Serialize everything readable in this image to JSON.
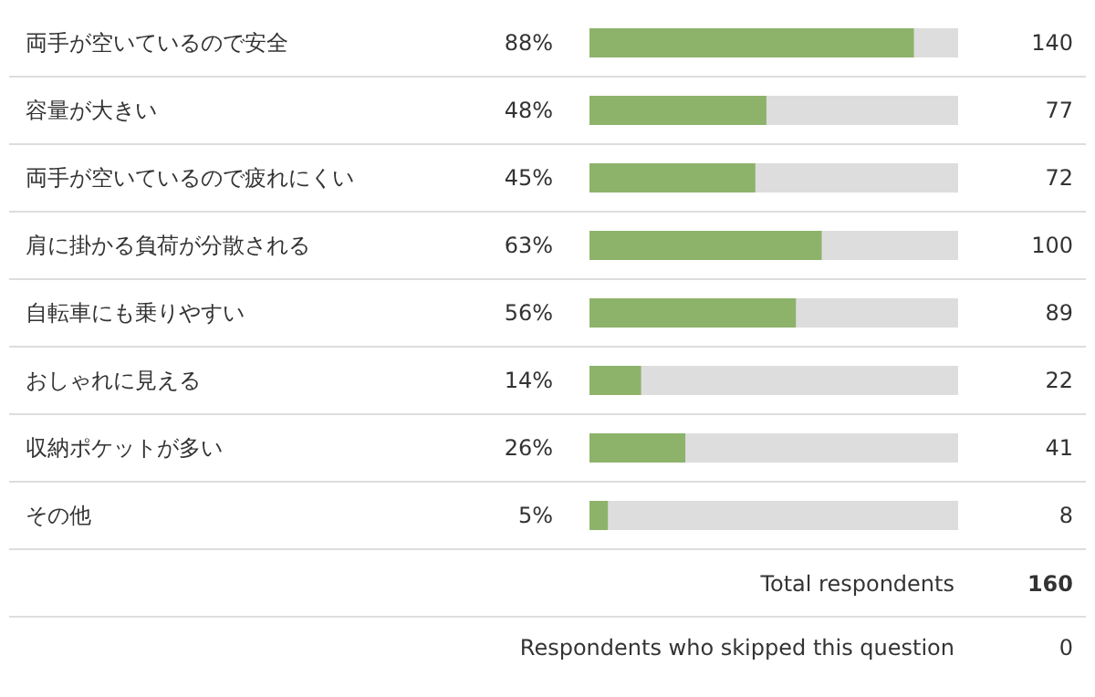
{
  "chart_data": {
    "type": "bar",
    "orientation": "horizontal",
    "categories": [
      "両手が空いているので安全",
      "容量が大きい",
      "両手が空いているので疲れにくい",
      "肩に掛かる負荷が分散される",
      "自転車にも乗りやすい",
      "おしゃれに見える",
      "収納ポケットが多い",
      "その他"
    ],
    "values": [
      88,
      48,
      45,
      63,
      56,
      14,
      26,
      5
    ],
    "value_labels": [
      "88%",
      "48%",
      "45%",
      "63%",
      "56%",
      "14%",
      "26%",
      "5%"
    ],
    "color": "#8db36b",
    "xlim": [
      0,
      100
    ],
    "annotations": [
      "140",
      "77",
      "72",
      "100",
      "89",
      "22",
      "41",
      "8",
      "Total respondents",
      "160",
      "Respondents who skipped this question",
      "0"
    ]
  }
}
